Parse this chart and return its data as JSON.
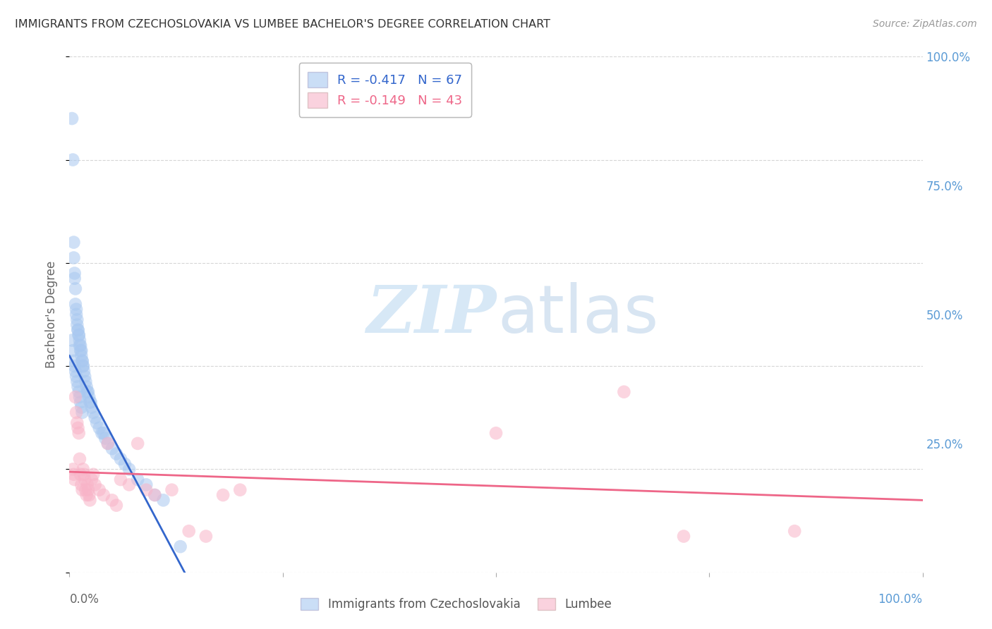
{
  "title": "IMMIGRANTS FROM CZECHOSLOVAKIA VS LUMBEE BACHELOR'S DEGREE CORRELATION CHART",
  "source": "Source: ZipAtlas.com",
  "ylabel": "Bachelor's Degree",
  "legend_blue_r": "-0.417",
  "legend_blue_n": "67",
  "legend_pink_r": "-0.149",
  "legend_pink_n": "43",
  "blue_color": "#A8C8F0",
  "pink_color": "#F8B4C8",
  "blue_line_color": "#3366CC",
  "pink_line_color": "#EE6688",
  "right_label_color": "#5B9BD5",
  "grid_color": "#CCCCCC",
  "title_color": "#333333",
  "source_color": "#999999",
  "background_color": "#FFFFFF",
  "blue_scatter_x": [
    0.3,
    0.4,
    0.5,
    0.5,
    0.6,
    0.6,
    0.7,
    0.7,
    0.8,
    0.8,
    0.9,
    0.9,
    1.0,
    1.0,
    1.1,
    1.1,
    1.2,
    1.2,
    1.3,
    1.3,
    1.4,
    1.4,
    1.5,
    1.5,
    1.6,
    1.6,
    1.7,
    1.8,
    1.9,
    2.0,
    2.1,
    2.2,
    2.3,
    2.4,
    2.5,
    2.6,
    2.8,
    3.0,
    3.2,
    3.5,
    3.8,
    4.0,
    4.2,
    4.5,
    5.0,
    5.5,
    6.0,
    6.5,
    7.0,
    8.0,
    9.0,
    10.0,
    11.0,
    13.0,
    0.3,
    0.4,
    0.5,
    0.6,
    0.7,
    0.8,
    0.9,
    1.0,
    1.1,
    1.2,
    1.3,
    1.4,
    1.5
  ],
  "blue_scatter_y": [
    88.0,
    80.0,
    64.0,
    61.0,
    58.0,
    57.0,
    55.0,
    52.0,
    51.0,
    50.0,
    49.0,
    48.0,
    47.0,
    47.0,
    46.0,
    46.0,
    45.0,
    44.0,
    44.0,
    43.0,
    43.0,
    42.0,
    41.0,
    41.0,
    40.0,
    40.0,
    39.0,
    38.0,
    37.0,
    36.0,
    35.0,
    35.0,
    34.0,
    33.0,
    33.0,
    32.0,
    31.0,
    30.0,
    29.0,
    28.0,
    27.0,
    27.0,
    26.0,
    25.0,
    24.0,
    23.0,
    22.0,
    21.0,
    20.0,
    18.0,
    17.0,
    15.0,
    14.0,
    5.0,
    45.0,
    43.0,
    41.0,
    40.0,
    39.0,
    38.0,
    37.0,
    36.0,
    35.0,
    34.0,
    33.0,
    32.0,
    31.0
  ],
  "pink_scatter_x": [
    0.4,
    0.5,
    0.6,
    0.7,
    0.8,
    0.9,
    1.0,
    1.1,
    1.2,
    1.3,
    1.4,
    1.5,
    1.6,
    1.7,
    1.8,
    1.9,
    2.0,
    2.1,
    2.2,
    2.3,
    2.4,
    2.6,
    2.8,
    3.0,
    3.5,
    4.0,
    4.5,
    5.0,
    5.5,
    6.0,
    7.0,
    8.0,
    9.0,
    10.0,
    12.0,
    14.0,
    16.0,
    18.0,
    20.0,
    50.0,
    65.0,
    72.0,
    85.0
  ],
  "pink_scatter_y": [
    20.0,
    19.0,
    18.0,
    34.0,
    31.0,
    29.0,
    28.0,
    27.0,
    22.0,
    19.0,
    17.0,
    16.0,
    20.0,
    19.0,
    18.0,
    16.0,
    15.0,
    17.0,
    16.0,
    15.0,
    14.0,
    18.0,
    19.0,
    17.0,
    16.0,
    15.0,
    25.0,
    14.0,
    13.0,
    18.0,
    17.0,
    25.0,
    16.0,
    15.0,
    16.0,
    8.0,
    7.0,
    15.0,
    16.0,
    27.0,
    35.0,
    7.0,
    8.0
  ],
  "blue_line": [
    [
      0.0,
      42.0
    ],
    [
      13.5,
      0.0
    ]
  ],
  "pink_line": [
    [
      0.0,
      19.5
    ],
    [
      100.0,
      14.0
    ]
  ],
  "xlim": [
    0,
    100
  ],
  "ylim": [
    0,
    100
  ],
  "xticks": [
    0,
    25,
    50,
    75,
    100
  ],
  "yticks": [
    0,
    25,
    50,
    75,
    100
  ],
  "ytick_labels_right": [
    "",
    "25.0%",
    "50.0%",
    "75.0%",
    "100.0%"
  ]
}
